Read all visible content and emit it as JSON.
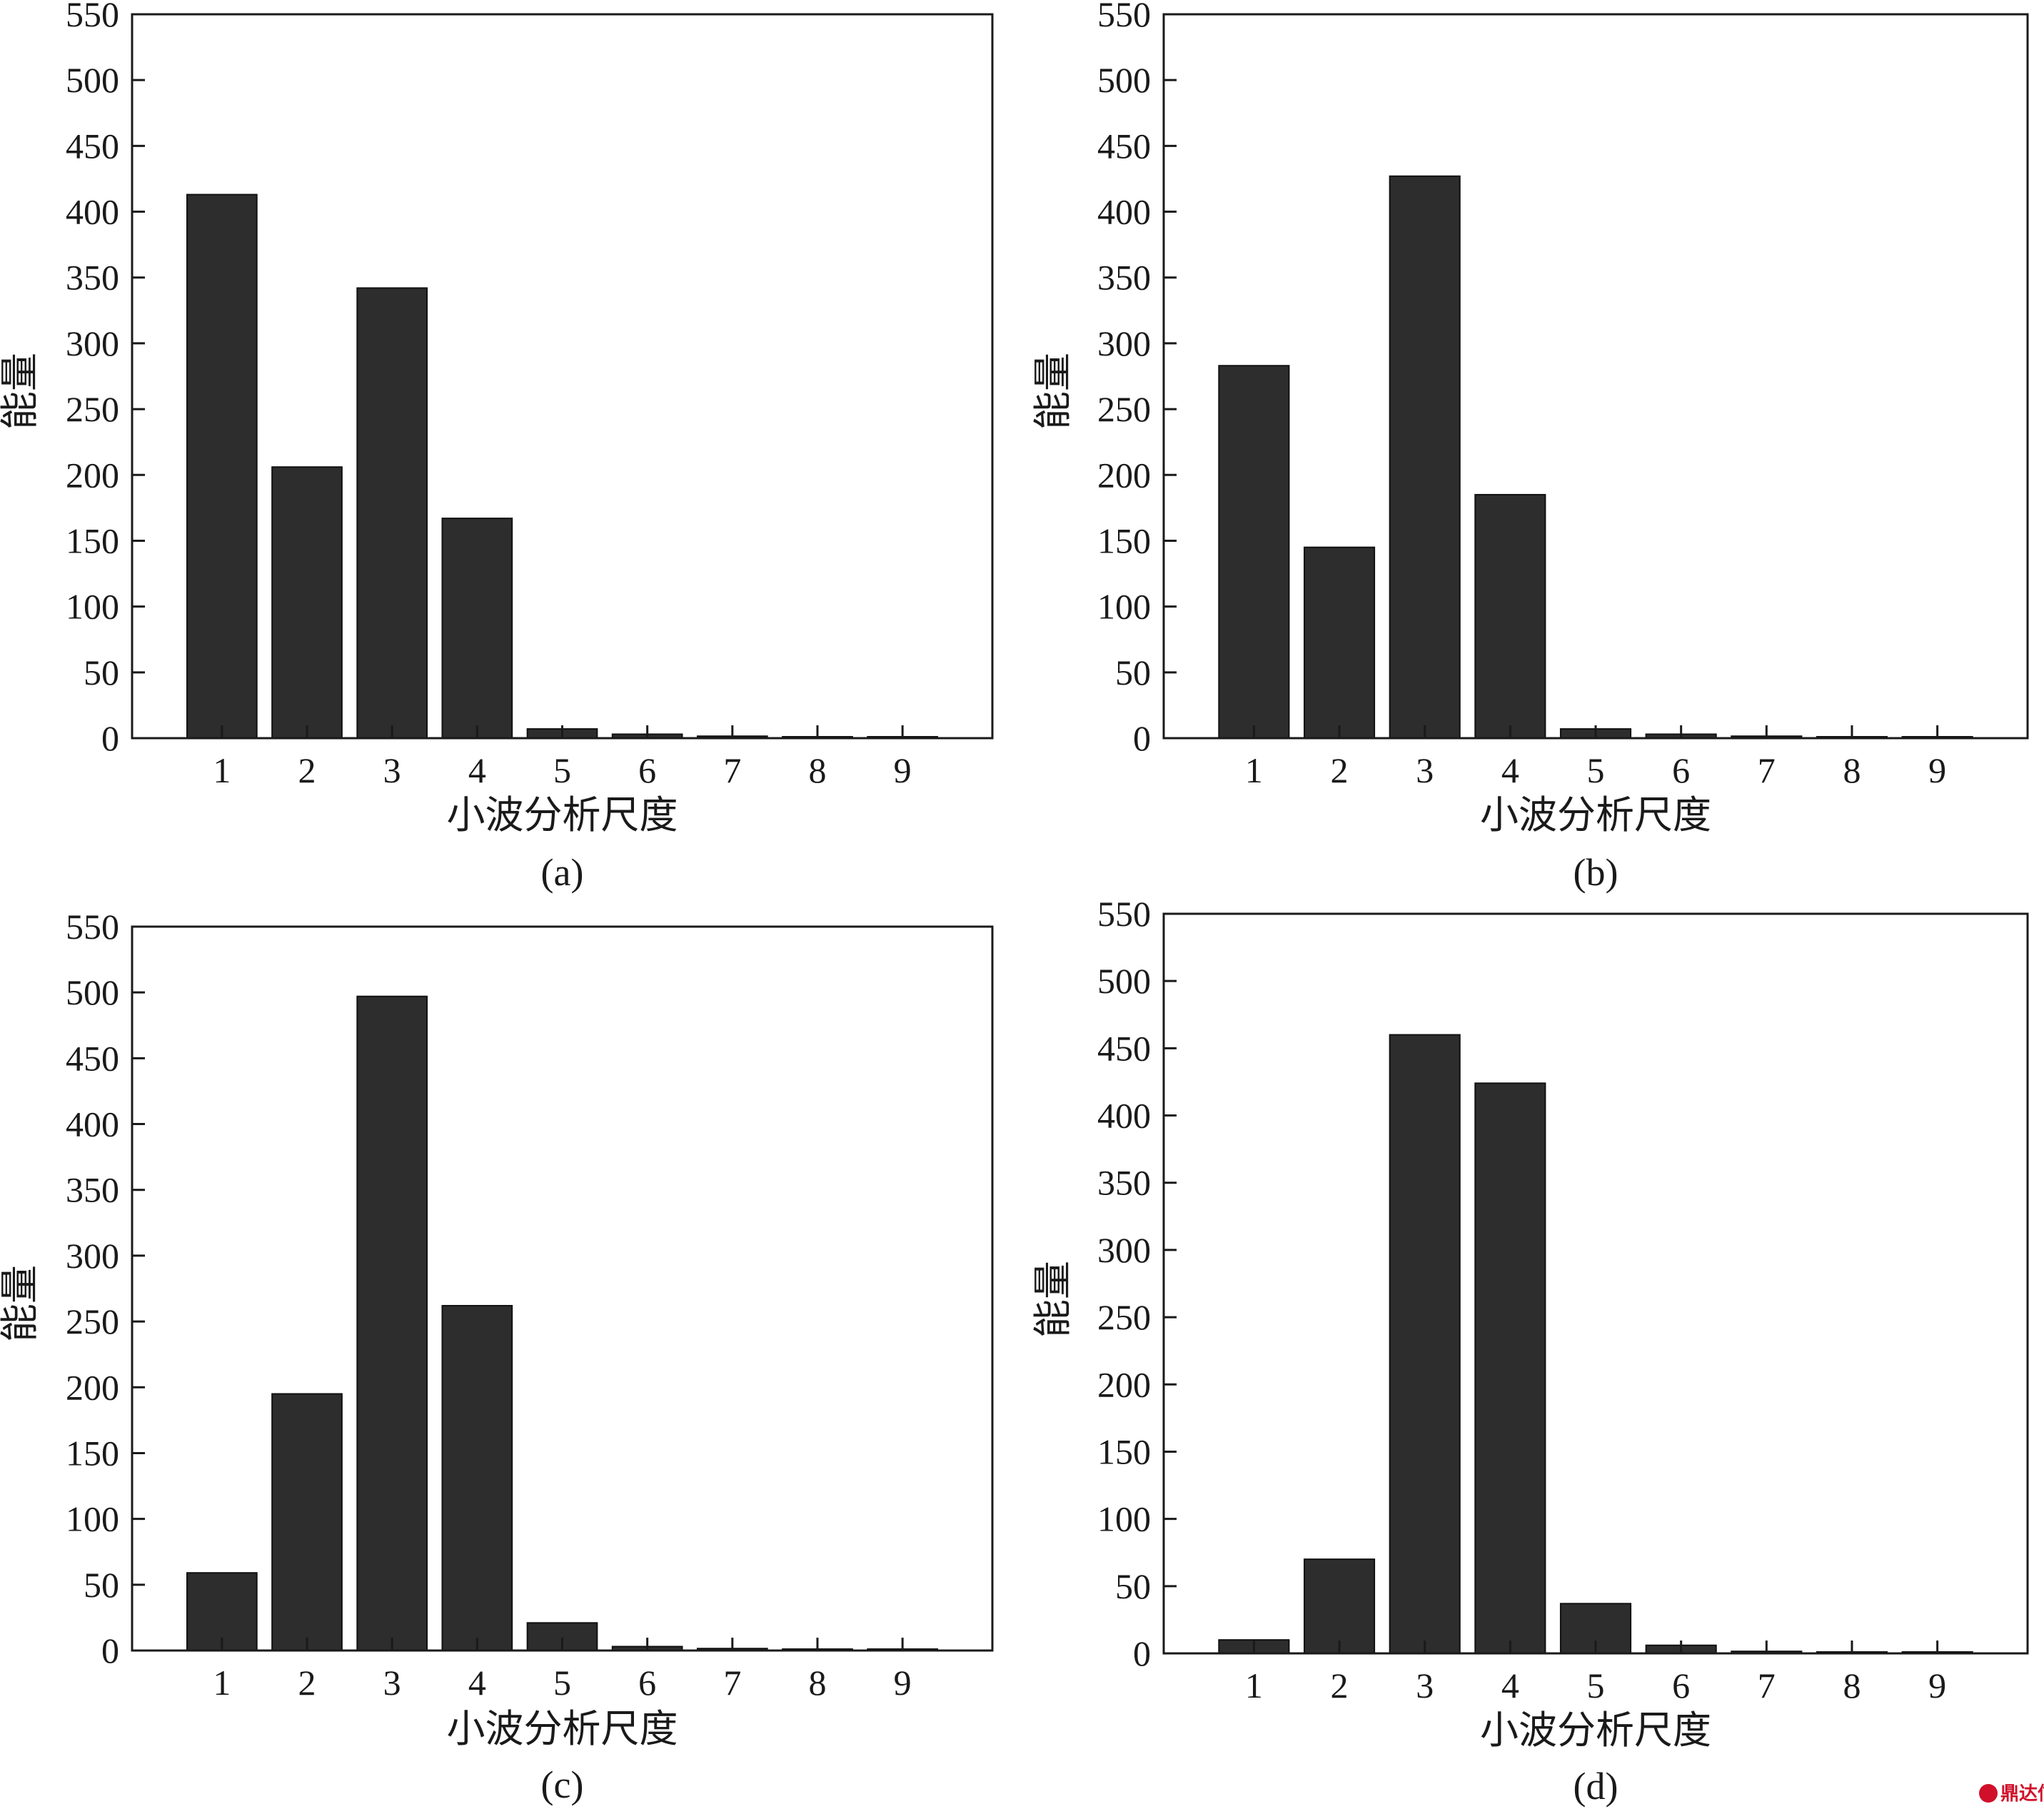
{
  "chart_data": [
    {
      "type": "bar",
      "panel_label": "(a)",
      "xlabel": "小波分析尺度",
      "ylabel": "能量",
      "categories": [
        "1",
        "2",
        "3",
        "4",
        "5",
        "6",
        "7",
        "8",
        "9"
      ],
      "values": [
        413,
        206,
        342,
        167,
        7,
        3,
        1.5,
        1,
        1
      ],
      "ylim": [
        0,
        550
      ],
      "yticks": [
        "0",
        "50",
        "100",
        "150",
        "200",
        "250",
        "300",
        "350",
        "400",
        "450",
        "500",
        "550"
      ],
      "grid": false
    },
    {
      "type": "bar",
      "panel_label": "(b)",
      "xlabel": "小波分析尺度",
      "ylabel": "能量",
      "categories": [
        "1",
        "2",
        "3",
        "4",
        "5",
        "6",
        "7",
        "8",
        "9"
      ],
      "values": [
        283,
        145,
        427,
        185,
        7,
        3,
        1.5,
        1,
        1
      ],
      "ylim": [
        0,
        550
      ],
      "yticks": [
        "0",
        "50",
        "100",
        "150",
        "200",
        "250",
        "300",
        "350",
        "400",
        "450",
        "500",
        "550"
      ],
      "grid": false
    },
    {
      "type": "bar",
      "panel_label": "(c)",
      "xlabel": "小波分析尺度",
      "ylabel": "能量",
      "categories": [
        "1",
        "2",
        "3",
        "4",
        "5",
        "6",
        "7",
        "8",
        "9"
      ],
      "values": [
        59,
        195,
        497,
        262,
        21,
        3,
        1.5,
        1,
        1
      ],
      "ylim": [
        0,
        550
      ],
      "yticks": [
        "0",
        "50",
        "100",
        "150",
        "200",
        "250",
        "300",
        "350",
        "400",
        "450",
        "500",
        "550"
      ],
      "grid": false
    },
    {
      "type": "bar",
      "panel_label": "(d)",
      "xlabel": "小波分析尺度",
      "ylabel": "能量",
      "categories": [
        "1",
        "2",
        "3",
        "4",
        "5",
        "6",
        "7",
        "8",
        "9"
      ],
      "values": [
        10,
        70,
        460,
        424,
        37,
        6,
        1.5,
        1,
        1
      ],
      "ylim": [
        0,
        550
      ],
      "yticks": [
        "0",
        "50",
        "100",
        "150",
        "200",
        "250",
        "300",
        "350",
        "400",
        "450",
        "500",
        "550"
      ],
      "grid": false
    }
  ],
  "watermark": {
    "text": "鼎达信",
    "color": "#d0102a"
  }
}
